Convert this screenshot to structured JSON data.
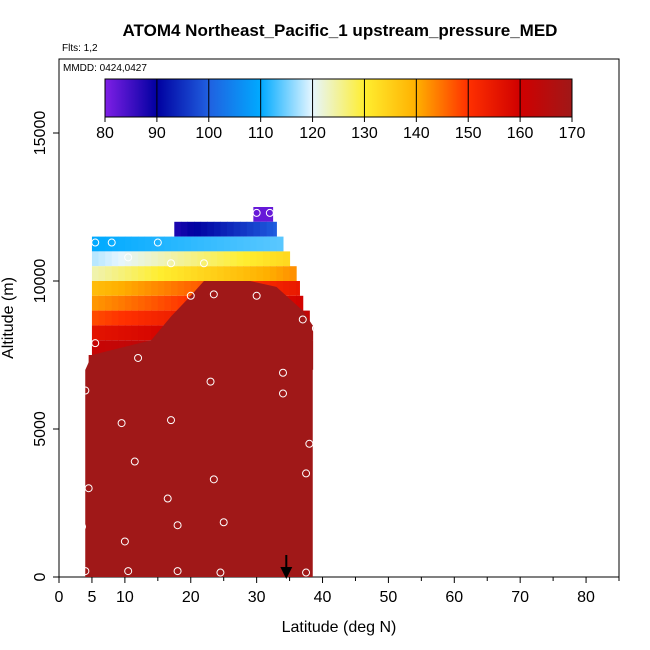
{
  "chart_data": {
    "type": "heatmap",
    "title": "ATOM4 Northeast_Pacific_1 upstream_pressure_MED",
    "subtitle_flights": "Flts: 1,2",
    "subtitle_dates": "MMDD: 0424,0427",
    "xlabel": "Latitude (deg N)",
    "ylabel": "Altitude (m)",
    "xlim": [
      0,
      85
    ],
    "ylim": [
      0,
      17500
    ],
    "x_ticks": [
      0,
      5,
      10,
      20,
      30,
      40,
      50,
      60,
      70,
      80
    ],
    "y_ticks": [
      0,
      5000,
      10000,
      15000
    ],
    "x_tick_labels": [
      "0",
      "5",
      "10",
      "20",
      "30",
      "40",
      "50",
      "60",
      "70",
      "80"
    ],
    "y_tick_labels": [
      "0",
      "5000",
      "10000",
      "15000"
    ],
    "colorbar": {
      "min": 80,
      "max": 170,
      "ticks": [
        80,
        90,
        100,
        110,
        120,
        130,
        140,
        150,
        160,
        170
      ],
      "tick_labels": [
        "80",
        "90",
        "100",
        "110",
        "120",
        "130",
        "140",
        "150",
        "160",
        "170"
      ],
      "stops": [
        "#7f1fe6",
        "#0000a0",
        "#2060e0",
        "#00aaff",
        "#e6f6ff",
        "#ffee30",
        "#ffb000",
        "#ff3000",
        "#d00000",
        "#a01818"
      ]
    },
    "rows": [
      {
        "alt_lo": 12000,
        "alt_hi": 12500,
        "lat_lo": 29.5,
        "lat_hi": 32.5,
        "value": 82
      },
      {
        "alt_lo": 11500,
        "alt_hi": 12000,
        "lat_lo": 17.5,
        "lat_hi": 33,
        "value_lo": 88,
        "value_hi": 100
      },
      {
        "alt_lo": 11000,
        "alt_hi": 11500,
        "lat_lo": 5,
        "lat_hi": 34,
        "value_lo": 110,
        "value_hi": 114
      },
      {
        "alt_lo": 10500,
        "alt_hi": 11000,
        "lat_lo": 5,
        "lat_hi": 35,
        "value_lo": 118,
        "value_hi": 134
      },
      {
        "alt_lo": 10000,
        "alt_hi": 10500,
        "lat_lo": 5,
        "lat_hi": 36,
        "value_lo": 124,
        "value_hi": 143
      },
      {
        "alt_lo": 9500,
        "alt_hi": 10000,
        "lat_lo": 5,
        "lat_hi": 36.5,
        "value_lo": 138,
        "value_hi": 155
      },
      {
        "alt_lo": 9000,
        "alt_hi": 9500,
        "lat_lo": 5,
        "lat_hi": 37,
        "value_lo": 142,
        "value_hi": 160
      },
      {
        "alt_lo": 8500,
        "alt_hi": 9000,
        "lat_lo": 5,
        "lat_hi": 38,
        "value_lo": 148,
        "value_hi": 163
      },
      {
        "alt_lo": 8000,
        "alt_hi": 8500,
        "lat_lo": 5,
        "lat_hi": 38.5,
        "value_lo": 156,
        "value_hi": 166
      },
      {
        "alt_lo": 7500,
        "alt_hi": 8000,
        "lat_lo": 5,
        "lat_hi": 38.5,
        "value_lo": 162,
        "value_hi": 168
      },
      {
        "alt_lo": 7000,
        "alt_hi": 7500,
        "lat_lo": 4.5,
        "lat_hi": 38.5,
        "value_lo": 167,
        "value_hi": 170
      },
      {
        "alt_lo": 0,
        "alt_hi": 7000,
        "lat_lo": 4,
        "lat_hi": 38.5,
        "value": 170
      }
    ],
    "contour_region": [
      [
        4,
        0
      ],
      [
        4,
        7000
      ],
      [
        5,
        7500
      ],
      [
        14,
        8000
      ],
      [
        17,
        8800
      ],
      [
        20,
        9500
      ],
      [
        22,
        10000
      ],
      [
        29,
        10000
      ],
      [
        33,
        9800
      ],
      [
        37,
        9000
      ],
      [
        38.5,
        8500
      ],
      [
        38.5,
        0
      ]
    ],
    "sample_points": [
      [
        30,
        12300
      ],
      [
        32,
        12300
      ],
      [
        5.5,
        11300
      ],
      [
        8,
        11300
      ],
      [
        15,
        11300
      ],
      [
        10.5,
        10800
      ],
      [
        17,
        10600
      ],
      [
        22,
        10600
      ],
      [
        20,
        9500
      ],
      [
        23.5,
        9550
      ],
      [
        30,
        9500
      ],
      [
        37,
        8700
      ],
      [
        39,
        8400
      ],
      [
        5.5,
        7900
      ],
      [
        12,
        7400
      ],
      [
        4,
        6300
      ],
      [
        23,
        6600
      ],
      [
        34,
        6900
      ],
      [
        34,
        6200
      ],
      [
        17,
        5300
      ],
      [
        9.5,
        5200
      ],
      [
        38,
        4500
      ],
      [
        11.5,
        3900
      ],
      [
        37.5,
        3500
      ],
      [
        23.5,
        3300
      ],
      [
        4.5,
        3000
      ],
      [
        16.5,
        2650
      ],
      [
        25,
        1850
      ],
      [
        18,
        1750
      ],
      [
        3.5,
        1700
      ],
      [
        10,
        1200
      ],
      [
        4,
        200
      ],
      [
        10.5,
        200
      ],
      [
        18,
        200
      ],
      [
        24.5,
        150
      ],
      [
        37.5,
        150
      ]
    ],
    "marker": {
      "lat": 34.5,
      "alt": 0
    }
  }
}
